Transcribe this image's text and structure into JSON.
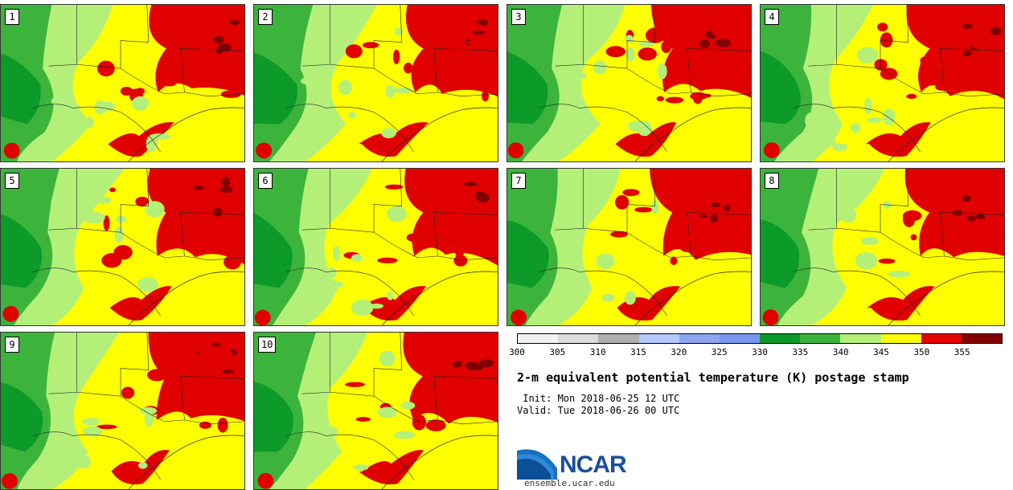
{
  "panels": [
    {
      "member": "1"
    },
    {
      "member": "2"
    },
    {
      "member": "3"
    },
    {
      "member": "4"
    },
    {
      "member": "5"
    },
    {
      "member": "6"
    },
    {
      "member": "7"
    },
    {
      "member": "8"
    },
    {
      "member": "9"
    },
    {
      "member": "10"
    }
  ],
  "colorbar": {
    "colors": [
      "#f2f2f2",
      "#dcdcdc",
      "#b0b0b0",
      "#b4c8fa",
      "#8ca6f0",
      "#7896f0",
      "#0c9a28",
      "#3cb43c",
      "#b4f078",
      "#ffff00",
      "#e10000",
      "#820000"
    ],
    "ticks": [
      "300",
      "305",
      "310",
      "315",
      "320",
      "325",
      "330",
      "335",
      "340",
      "345",
      "350",
      "355"
    ]
  },
  "title": "2-m equivalent potential temperature (K) postage stamp",
  "init": " Init: Mon 2018-06-25 12 UTC",
  "valid": "Valid: Tue 2018-06-26 00 UTC",
  "logo_text": "NCAR",
  "site": "ensemble.ucar.edu"
}
